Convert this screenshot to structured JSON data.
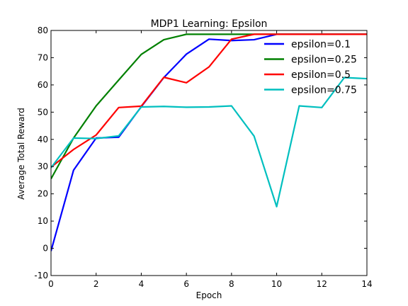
{
  "chart_data": {
    "type": "line",
    "title": "MDP1 Learning: Epsilon",
    "xlabel": "Epoch",
    "ylabel": "Average Total Reward",
    "xlim": [
      0,
      14
    ],
    "ylim": [
      -10,
      80
    ],
    "xticks": [
      0,
      2,
      4,
      6,
      8,
      10,
      12,
      14
    ],
    "yticks": [
      -10,
      0,
      10,
      20,
      30,
      40,
      50,
      60,
      70,
      80
    ],
    "grid": false,
    "legend_position": "top-right",
    "x": [
      0,
      1,
      2,
      3,
      4,
      5,
      6,
      7,
      8,
      9,
      10,
      11,
      12,
      13,
      14
    ],
    "series": [
      {
        "name": "epsilon=0.1",
        "color": "#0000ff",
        "values": [
          -1,
          28.7,
          40.5,
          40.8,
          52,
          62.7,
          71.3,
          76.8,
          76.3,
          76.6,
          78.6,
          78.6,
          78.6,
          78.6,
          78.6
        ]
      },
      {
        "name": "epsilon=0.25",
        "color": "#008000",
        "values": [
          25.5,
          40.5,
          52.3,
          61.8,
          71.2,
          76.6,
          78.6,
          78.6,
          78.6,
          78.6,
          78.6,
          78.6,
          78.6,
          78.6,
          78.6
        ]
      },
      {
        "name": "epsilon=0.5",
        "color": "#ff0000",
        "values": [
          29.8,
          36.3,
          41.6,
          51.7,
          52.2,
          62.8,
          60.8,
          66.6,
          76.8,
          78.6,
          78.6,
          78.6,
          78.6,
          78.6,
          78.6
        ]
      },
      {
        "name": "epsilon=0.75",
        "color": "#00bfbf",
        "values": [
          29.6,
          40.5,
          40.3,
          41.3,
          51.9,
          52.1,
          51.8,
          51.9,
          52.3,
          41.2,
          15.3,
          52.3,
          51.7,
          62.7,
          62.3
        ]
      }
    ]
  }
}
